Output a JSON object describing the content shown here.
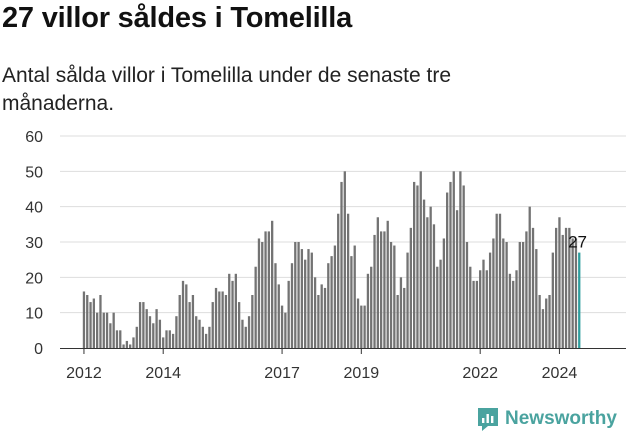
{
  "header": {
    "title": "27 villor såldes i Tomelilla",
    "subtitle": "Antal sålda villor i Tomelilla under de senaste tre månaderna."
  },
  "brand": {
    "name": "Newsworthy",
    "icon": "newsworthy-logo-icon",
    "color": "#4aa39f"
  },
  "chart_data": {
    "type": "bar",
    "title": "27 villor såldes i Tomelilla",
    "subtitle": "Antal sålda villor i Tomelilla under de senaste tre månaderna.",
    "ylim": [
      0,
      60
    ],
    "yticks": [
      0,
      10,
      20,
      30,
      40,
      50,
      60
    ],
    "xticks": [
      "2012",
      "2014",
      "2017",
      "2019",
      "2022",
      "2024"
    ],
    "x_start": "2012-01",
    "grid": true,
    "bar_color": "#737373",
    "highlight_color": "#2f9e9e",
    "last_value_label": "27",
    "values": [
      16,
      15,
      13,
      14,
      10,
      15,
      10,
      10,
      7,
      10,
      5,
      5,
      1,
      2,
      1,
      3,
      6,
      13,
      13,
      11,
      9,
      7,
      11,
      8,
      3,
      5,
      5,
      4,
      9,
      15,
      19,
      18,
      13,
      15,
      9,
      8,
      6,
      4,
      6,
      13,
      17,
      16,
      16,
      15,
      21,
      19,
      21,
      13,
      8,
      6,
      9,
      15,
      23,
      31,
      30,
      33,
      33,
      36,
      24,
      18,
      12,
      10,
      19,
      24,
      30,
      30,
      28,
      25,
      28,
      27,
      20,
      15,
      18,
      17,
      24,
      26,
      29,
      38,
      47,
      50,
      38,
      26,
      29,
      14,
      12,
      12,
      21,
      23,
      32,
      37,
      33,
      33,
      36,
      30,
      29,
      15,
      20,
      17,
      27,
      34,
      47,
      46,
      50,
      42,
      37,
      40,
      35,
      23,
      25,
      31,
      44,
      47,
      50,
      39,
      50,
      46,
      30,
      23,
      19,
      19,
      22,
      25,
      22,
      27,
      31,
      38,
      38,
      31,
      30,
      21,
      19,
      22,
      30,
      30,
      33,
      40,
      34,
      28,
      15,
      11,
      14,
      15,
      27,
      34,
      37,
      32,
      34,
      34,
      31,
      31,
      27
    ],
    "value_labels_shown": [
      {
        "index": 150,
        "text": "27"
      }
    ]
  }
}
